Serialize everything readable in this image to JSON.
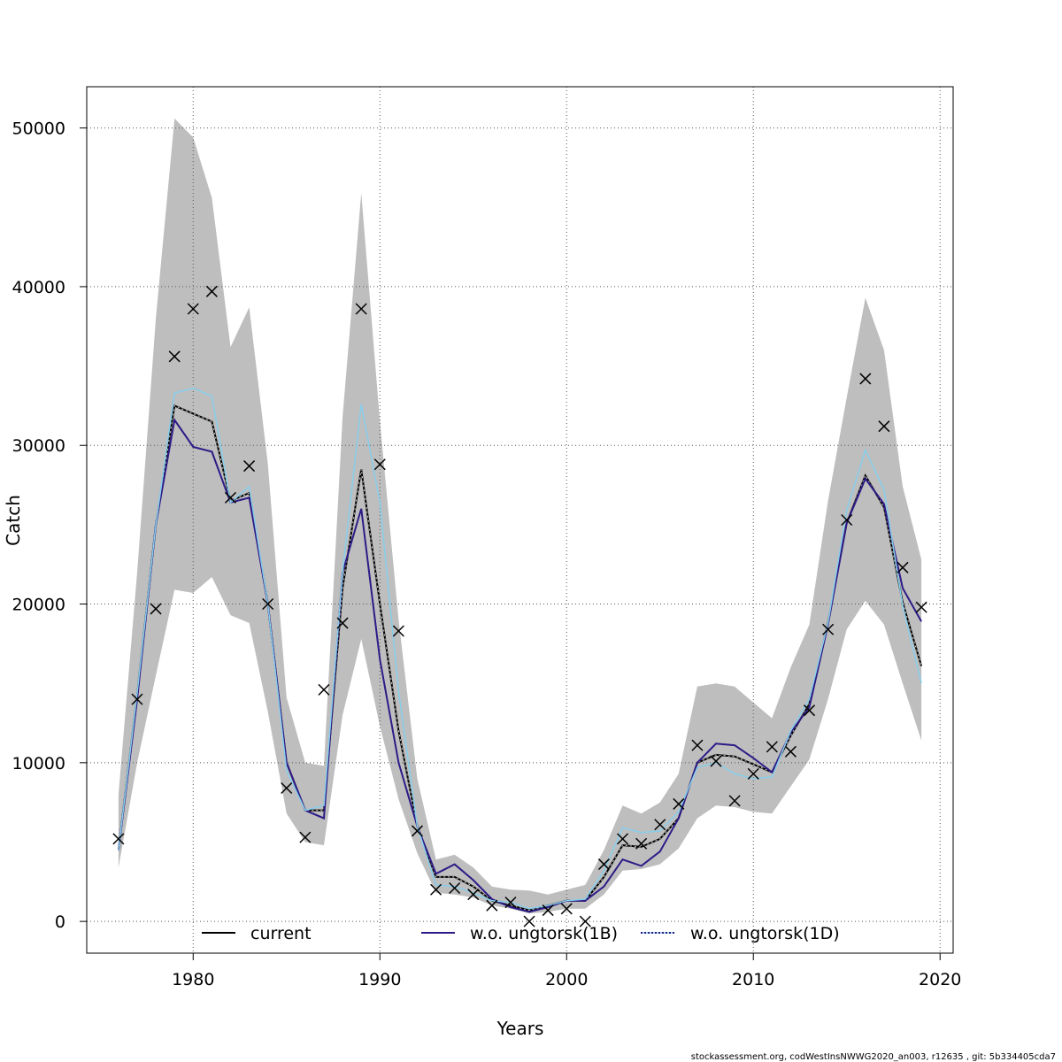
{
  "chart_data": {
    "type": "line",
    "xlabel": "Years",
    "ylabel": "Catch",
    "xlim": [
      1974.3,
      2020.7
    ],
    "ylim": [
      -2000,
      52600
    ],
    "xticks": [
      1980,
      1990,
      2000,
      2010,
      2020
    ],
    "yticks": [
      0,
      10000,
      20000,
      30000,
      40000,
      50000
    ],
    "grid": true,
    "legend_position": "bottom",
    "colors": {
      "band": "#bebebe",
      "current": "#000000",
      "ung1B": "#2e1a87",
      "ung1D": "#87ceeb",
      "observed": "#000000"
    },
    "x": [
      1976,
      1977,
      1978,
      1979,
      1980,
      1981,
      1982,
      1983,
      1984,
      1985,
      1986,
      1987,
      1988,
      1989,
      1990,
      1991,
      1992,
      1993,
      1994,
      1995,
      1996,
      1997,
      1998,
      1999,
      2000,
      2001,
      2002,
      2003,
      2004,
      2005,
      2006,
      2007,
      2008,
      2009,
      2010,
      2011,
      2012,
      2013,
      2014,
      2015,
      2016,
      2017,
      2018,
      2019
    ],
    "band": {
      "name": "confidence band",
      "upper": [
        8000,
        22000,
        38000,
        50600,
        49400,
        45600,
        36200,
        38700,
        28800,
        14100,
        10000,
        9800,
        31800,
        45900,
        31500,
        19000,
        9000,
        3900,
        4200,
        3400,
        2200,
        2000,
        1950,
        1700,
        2000,
        2300,
        4500,
        7300,
        6800,
        7500,
        9300,
        14800,
        15000,
        14800,
        13800,
        12800,
        16000,
        18700,
        26500,
        33000,
        39300,
        36000,
        27400,
        22800
      ],
      "lower": [
        3400,
        10000,
        15500,
        20900,
        20700,
        21700,
        19300,
        18800,
        13200,
        6800,
        5000,
        4800,
        13000,
        17800,
        12300,
        7700,
        4300,
        1800,
        1700,
        1500,
        1000,
        800,
        500,
        600,
        800,
        800,
        1700,
        3200,
        3300,
        3600,
        4600,
        6500,
        7300,
        7200,
        6900,
        6800,
        8500,
        10200,
        14000,
        18400,
        20200,
        18700,
        15000,
        11400
      ]
    },
    "series": [
      {
        "name": "current",
        "values": [
          4500,
          14300,
          25000,
          32500,
          32000,
          31500,
          26500,
          27000,
          20000,
          10000,
          7000,
          7000,
          21000,
          28500,
          20000,
          12000,
          6000,
          2800,
          2800,
          2200,
          1300,
          1000,
          700,
          1000,
          1300,
          1300,
          2800,
          4800,
          4700,
          5200,
          6500,
          10000,
          10500,
          10400,
          9900,
          9400,
          11700,
          13700,
          18800,
          25100,
          28100,
          26100,
          20100,
          16100
        ]
      },
      {
        "name": "w.o. ungtorsk(1B)",
        "values": [
          4500,
          14000,
          25000,
          31600,
          29900,
          29600,
          26400,
          26700,
          20000,
          10000,
          7000,
          6500,
          22000,
          26000,
          16500,
          10000,
          6000,
          3000,
          3600,
          2600,
          1400,
          900,
          600,
          900,
          1300,
          1300,
          2200,
          3900,
          3500,
          4400,
          6500,
          10000,
          11200,
          11100,
          10300,
          9400,
          11900,
          13500,
          18700,
          25100,
          27900,
          26300,
          21000,
          18900
        ]
      },
      {
        "name": "w.o. ungtorsk(1D)",
        "values": [
          4500,
          14400,
          25000,
          33300,
          33600,
          33100,
          26400,
          27400,
          20000,
          9500,
          7000,
          7300,
          22000,
          32600,
          26400,
          14500,
          6000,
          2300,
          2200,
          1800,
          1300,
          1200,
          800,
          1000,
          1300,
          1400,
          3200,
          5900,
          5600,
          5700,
          6900,
          9700,
          10000,
          9300,
          9000,
          9100,
          12000,
          14000,
          18800,
          25900,
          29700,
          27200,
          19900,
          15000
        ]
      }
    ],
    "observed": {
      "marker": "x",
      "values": [
        5200,
        14000,
        19700,
        35600,
        38600,
        39700,
        26700,
        28700,
        20000,
        8400,
        5300,
        14600,
        18800,
        38600,
        28800,
        18300,
        5700,
        2000,
        2100,
        1700,
        1000,
        1200,
        0,
        700,
        800,
        0,
        3600,
        5200,
        4900,
        6100,
        7400,
        11100,
        10100,
        7600,
        9300,
        11000,
        10700,
        13300,
        18400,
        25300,
        34200,
        31200,
        22300,
        19800
      ]
    }
  },
  "legend": {
    "items": [
      {
        "label": "current"
      },
      {
        "label": "w.o. ungtorsk(1B)"
      },
      {
        "label": "w.o. ungtorsk(1D)"
      }
    ]
  },
  "footer": {
    "text": "stockassessment.org, codWestInsNWWG2020_an003, r12635 , git: 5b334405cda7"
  }
}
